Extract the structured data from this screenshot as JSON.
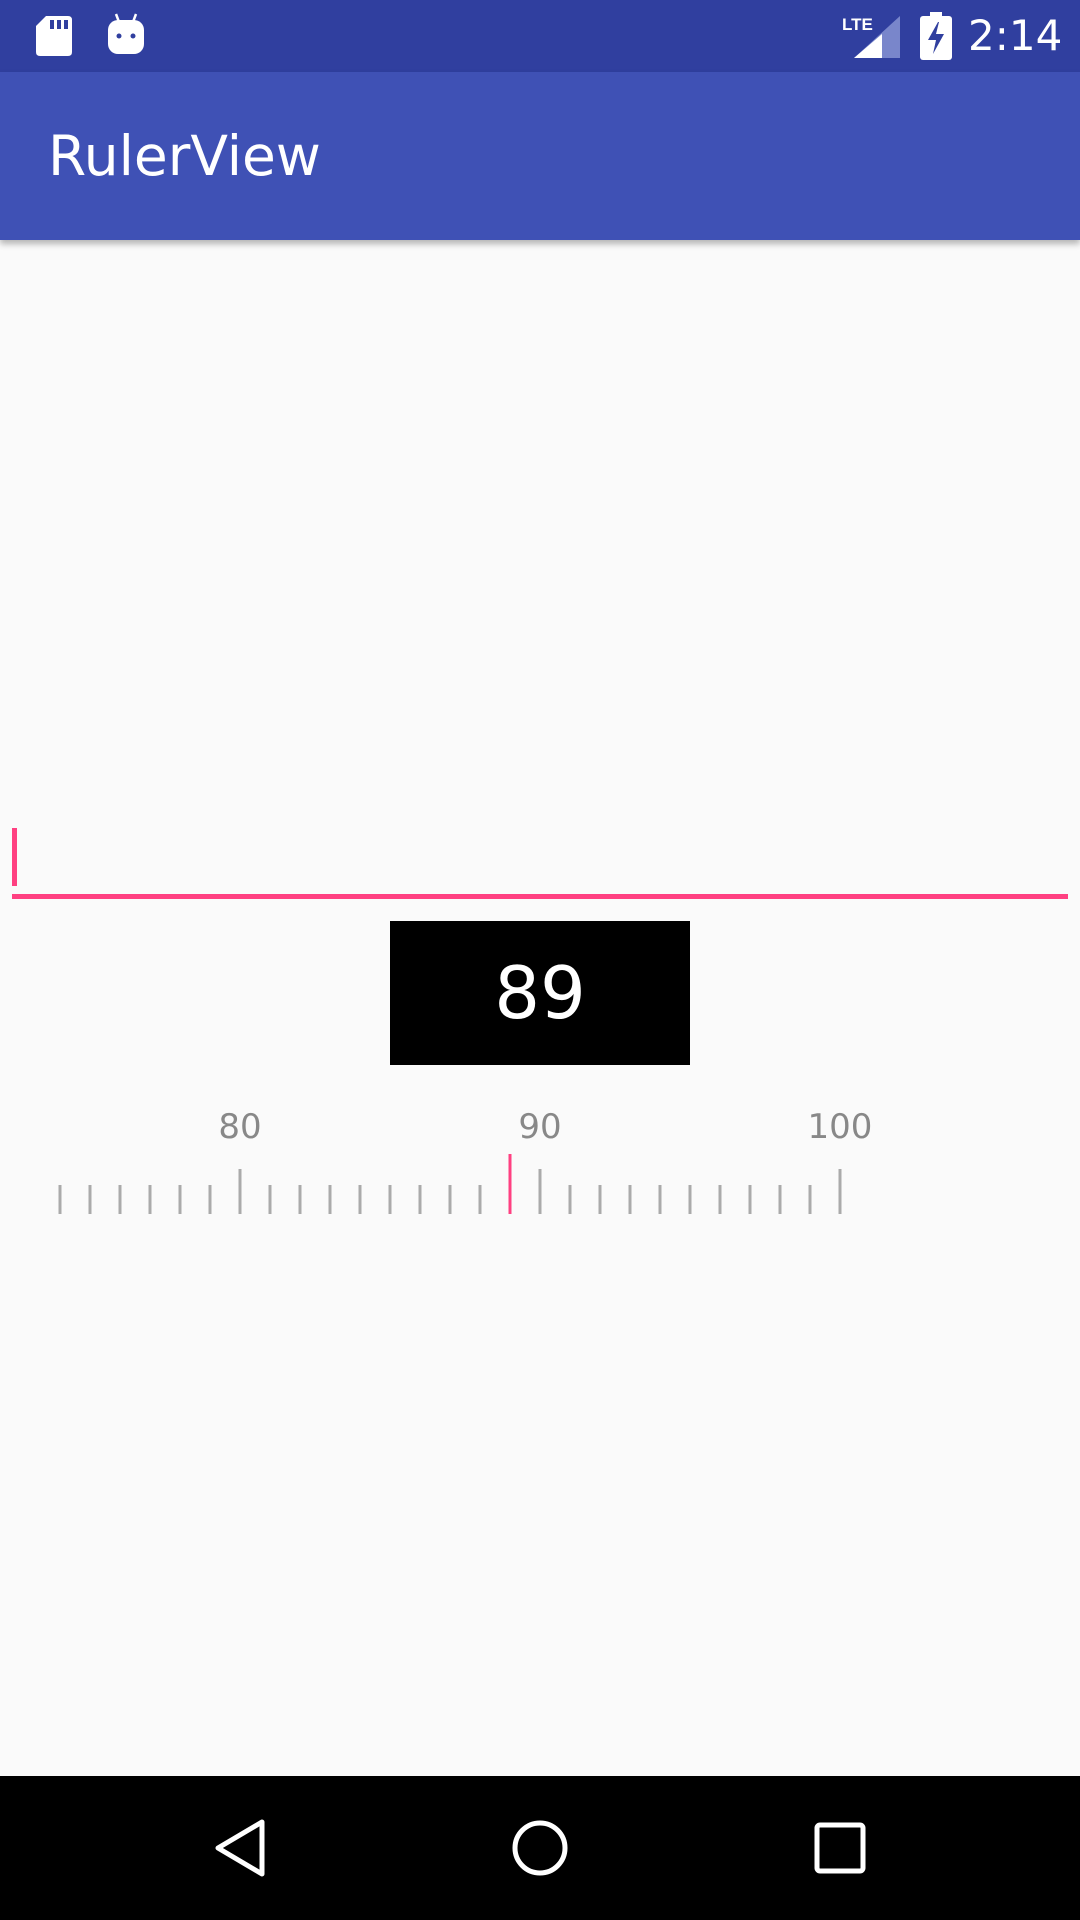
{
  "status_bar": {
    "time": "2:14",
    "network": "LTE",
    "icons": [
      "sd-card-icon",
      "android-icon",
      "signal-icon",
      "battery-charging-icon"
    ],
    "background": "#303f9f"
  },
  "app_bar": {
    "title": "RulerView",
    "background": "#3f51b5"
  },
  "edit_field": {
    "value": "",
    "accent": "#ff4081"
  },
  "ruler": {
    "current_value": "89",
    "min_visible": 74,
    "max_visible": 100,
    "labels": [
      "80",
      "90",
      "100"
    ],
    "indicator_color": "#ff4081",
    "tick_color": "#aaaaaa",
    "label_color": "#888888"
  },
  "nav_bar": {
    "buttons": [
      "back-icon",
      "home-icon",
      "recents-icon"
    ]
  }
}
